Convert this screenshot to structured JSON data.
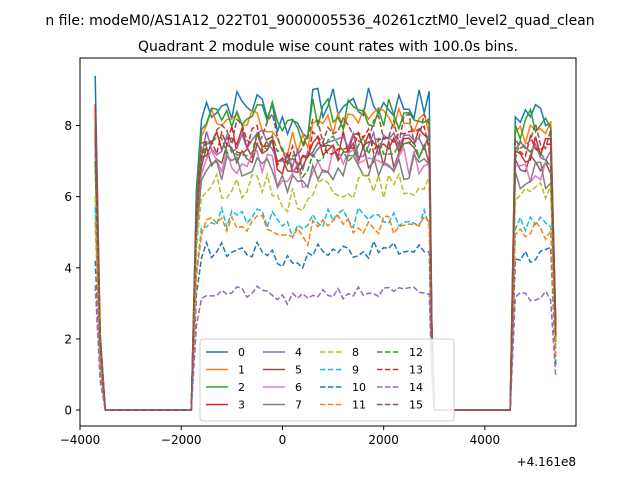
{
  "figure": {
    "suptitle": "n file: modeM0/AS1A12_022T01_9000005536_40261cztM0_level2_quad_clean",
    "title": "Quadrant 2 module wise count rates with 100.0s bins."
  },
  "chart_data": {
    "type": "line",
    "title": "Quadrant 2 module wise count rates with 100.0s bins.",
    "xlabel": "",
    "ylabel": "",
    "x_offset_label": "+4.161e8",
    "xlim": [
      -4000,
      5800
    ],
    "ylim": [
      -0.45,
      9.9
    ],
    "xticks": [
      -4000,
      -2000,
      0,
      2000,
      4000
    ],
    "yticks": [
      0,
      2,
      4,
      6,
      8
    ],
    "x_segments": [
      {
        "start": -3700,
        "end": -3500,
        "step": 100
      },
      {
        "start": -1700,
        "end": 2900,
        "step": 100
      },
      {
        "start": 4600,
        "end": 5400,
        "step": 100
      }
    ],
    "legend": {
      "placement": "lower center",
      "columns": 4
    },
    "series": [
      {
        "name": "0",
        "color": "#1f77b4",
        "dash": "solid",
        "level": 8.6,
        "edge": 9.4
      },
      {
        "name": "1",
        "color": "#ff7f0e",
        "dash": "solid",
        "level": 8.1,
        "edge": 8.5
      },
      {
        "name": "2",
        "color": "#2ca02c",
        "dash": "solid",
        "level": 8.3,
        "edge": 8.1
      },
      {
        "name": "3",
        "color": "#d62728",
        "dash": "solid",
        "level": 7.5,
        "edge": 8.6
      },
      {
        "name": "4",
        "color": "#9467bd",
        "dash": "solid",
        "level": 7.5,
        "edge": 7.6
      },
      {
        "name": "5",
        "color": "#8c564b",
        "dash": "solid",
        "level": 7.2,
        "edge": 7.8
      },
      {
        "name": "6",
        "color": "#e377c2",
        "dash": "solid",
        "level": 7.0,
        "edge": 7.2
      },
      {
        "name": "7",
        "color": "#7f7f7f",
        "dash": "solid",
        "level": 6.8,
        "edge": 6.9
      },
      {
        "name": "8",
        "color": "#bcbd22",
        "dash": "dashed",
        "level": 6.3,
        "edge": 6.0
      },
      {
        "name": "9",
        "color": "#17becf",
        "dash": "dashed",
        "level": 5.4,
        "edge": 5.7
      },
      {
        "name": "10",
        "color": "#1f77b4",
        "dash": "dashed",
        "level": 4.5,
        "edge": 4.2
      },
      {
        "name": "11",
        "color": "#ff7f0e",
        "dash": "dashed",
        "level": 5.2,
        "edge": 5.3
      },
      {
        "name": "12",
        "color": "#2ca02c",
        "dash": "dashed",
        "level": 7.4,
        "edge": 7.0
      },
      {
        "name": "13",
        "color": "#d62728",
        "dash": "dashed",
        "level": 7.6,
        "edge": 7.9
      },
      {
        "name": "14",
        "color": "#9467bd",
        "dash": "dashed",
        "level": 3.3,
        "edge": 3.5
      },
      {
        "name": "15",
        "color": "#8c564b",
        "dash": "dashed",
        "level": 7.9,
        "edge": 8.3
      }
    ]
  }
}
